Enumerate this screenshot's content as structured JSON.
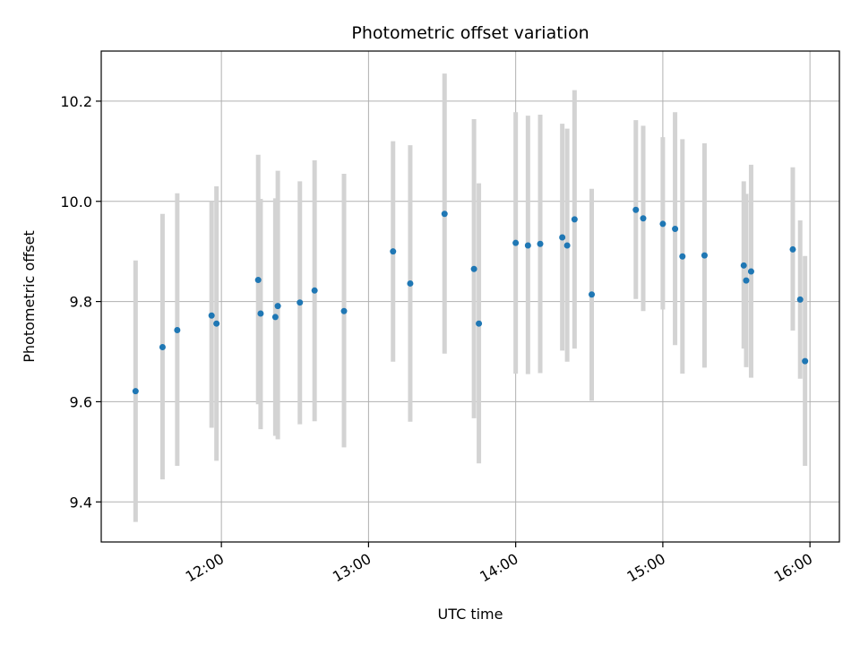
{
  "chart_data": {
    "type": "scatter",
    "title": "Photometric offset variation",
    "xlabel": "UTC time",
    "ylabel": "Photometric offset",
    "x_axis_type": "time",
    "xlim": [
      "11:11",
      "16:12"
    ],
    "ylim": [
      9.32,
      10.3
    ],
    "x_ticks": [
      "12:00",
      "13:00",
      "14:00",
      "15:00",
      "16:00"
    ],
    "y_ticks": [
      9.4,
      9.6,
      9.8,
      10.0,
      10.2
    ],
    "grid": true,
    "point_color": "#1f77b4",
    "errorbar_color": "#d3d3d3",
    "points": [
      {
        "x": "11:25",
        "y": 9.621,
        "low": 9.36,
        "high": 9.882
      },
      {
        "x": "11:36",
        "y": 9.709,
        "low": 9.445,
        "high": 9.975
      },
      {
        "x": "11:42",
        "y": 9.743,
        "low": 9.472,
        "high": 10.016
      },
      {
        "x": "11:56",
        "y": 9.772,
        "low": 9.548,
        "high": 10.0
      },
      {
        "x": "11:58",
        "y": 9.756,
        "low": 9.482,
        "high": 10.03
      },
      {
        "x": "12:15",
        "y": 9.843,
        "low": 9.595,
        "high": 10.093
      },
      {
        "x": "12:16",
        "y": 9.776,
        "low": 9.545,
        "high": 10.005
      },
      {
        "x": "12:22",
        "y": 9.769,
        "low": 9.532,
        "high": 10.006
      },
      {
        "x": "12:23",
        "y": 9.791,
        "low": 9.525,
        "high": 10.061
      },
      {
        "x": "12:32",
        "y": 9.798,
        "low": 9.555,
        "high": 10.04
      },
      {
        "x": "12:38",
        "y": 9.822,
        "low": 9.561,
        "high": 10.082
      },
      {
        "x": "12:50",
        "y": 9.781,
        "low": 9.509,
        "high": 10.055
      },
      {
        "x": "13:10",
        "y": 9.9,
        "low": 9.68,
        "high": 10.12
      },
      {
        "x": "13:17",
        "y": 9.836,
        "low": 9.56,
        "high": 10.112
      },
      {
        "x": "13:31",
        "y": 9.975,
        "low": 9.696,
        "high": 10.255
      },
      {
        "x": "13:43",
        "y": 9.865,
        "low": 9.567,
        "high": 10.164
      },
      {
        "x": "13:45",
        "y": 9.756,
        "low": 9.477,
        "high": 10.036
      },
      {
        "x": "14:00",
        "y": 9.917,
        "low": 9.656,
        "high": 10.178
      },
      {
        "x": "14:05",
        "y": 9.912,
        "low": 9.655,
        "high": 10.171
      },
      {
        "x": "14:10",
        "y": 9.915,
        "low": 9.657,
        "high": 10.173
      },
      {
        "x": "14:19",
        "y": 9.928,
        "low": 9.702,
        "high": 10.155
      },
      {
        "x": "14:21",
        "y": 9.912,
        "low": 9.68,
        "high": 10.145
      },
      {
        "x": "14:24",
        "y": 9.964,
        "low": 9.706,
        "high": 10.222
      },
      {
        "x": "14:31",
        "y": 9.814,
        "low": 9.602,
        "high": 10.025
      },
      {
        "x": "14:49",
        "y": 9.983,
        "low": 9.805,
        "high": 10.162
      },
      {
        "x": "14:52",
        "y": 9.966,
        "low": 9.781,
        "high": 10.151
      },
      {
        "x": "15:00",
        "y": 9.955,
        "low": 9.784,
        "high": 10.128
      },
      {
        "x": "15:05",
        "y": 9.945,
        "low": 9.713,
        "high": 10.178
      },
      {
        "x": "15:08",
        "y": 9.89,
        "low": 9.656,
        "high": 10.124
      },
      {
        "x": "15:17",
        "y": 9.892,
        "low": 9.668,
        "high": 10.116
      },
      {
        "x": "15:33",
        "y": 9.872,
        "low": 9.706,
        "high": 10.04
      },
      {
        "x": "15:34",
        "y": 9.842,
        "low": 9.669,
        "high": 10.015
      },
      {
        "x": "15:36",
        "y": 9.86,
        "low": 9.648,
        "high": 10.073
      },
      {
        "x": "15:53",
        "y": 9.904,
        "low": 9.742,
        "high": 10.068
      },
      {
        "x": "15:56",
        "y": 9.804,
        "low": 9.646,
        "high": 9.962
      },
      {
        "x": "15:58",
        "y": 9.681,
        "low": 9.472,
        "high": 9.891
      }
    ]
  }
}
